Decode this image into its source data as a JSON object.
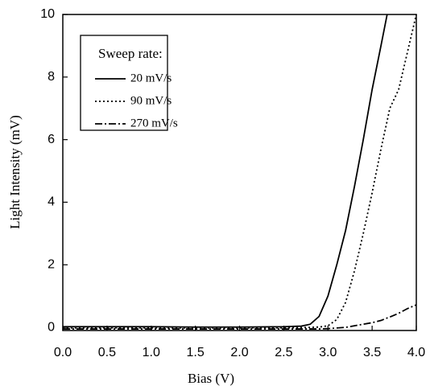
{
  "chart_data": {
    "type": "line",
    "x_label": "Bias (V)",
    "y_label": "Light Intensity (mV)",
    "legend_title": "Sweep rate:",
    "legend": "upper-left",
    "x": [
      0,
      0.5,
      1.0,
      1.5,
      2.0,
      2.5,
      2.7,
      2.8,
      2.9,
      3.0,
      3.1,
      3.2,
      3.3,
      3.4,
      3.5,
      3.6,
      3.67,
      3.7,
      3.8,
      3.9,
      4.0
    ],
    "series": [
      {
        "name": "20 mV/s",
        "color": "#000000",
        "style": "solid",
        "values": [
          0.02,
          0.02,
          0.02,
          0.01,
          0.01,
          0.02,
          0.04,
          0.1,
          0.35,
          1.0,
          2.0,
          3.1,
          4.5,
          6.0,
          7.6,
          9.0,
          10,
          null,
          null,
          null,
          null
        ]
      },
      {
        "name": "90 mV/s",
        "color": "#000000",
        "style": "dotted",
        "values": [
          -0.02,
          -0.02,
          -0.02,
          -0.02,
          -0.02,
          -0.02,
          -0.01,
          0.0,
          0.01,
          0.05,
          0.25,
          0.8,
          1.8,
          3.0,
          4.3,
          5.7,
          6.6,
          7.0,
          7.6,
          8.8,
          10
        ]
      },
      {
        "name": "270 mV/s",
        "color": "#000000",
        "style": "dashdot",
        "values": [
          -0.05,
          -0.05,
          -0.05,
          -0.05,
          -0.05,
          -0.05,
          -0.05,
          -0.05,
          -0.05,
          -0.04,
          -0.02,
          0.0,
          0.05,
          0.1,
          0.15,
          0.22,
          0.3,
          0.33,
          0.45,
          0.6,
          0.72
        ]
      }
    ],
    "xlim": [
      0,
      4.0
    ],
    "xticks": [
      {
        "value": 0,
        "label": "0.0"
      },
      0.5,
      {
        "value": 1,
        "label": "1.0"
      },
      1.5,
      {
        "value": 2,
        "label": "2.0"
      },
      2.5,
      {
        "value": 3,
        "label": "3.0"
      },
      3.5,
      {
        "value": 4,
        "label": "4.0"
      }
    ],
    "ylim": [
      -0.1,
      10
    ],
    "yticks": [
      0,
      2,
      4,
      6,
      8,
      10
    ],
    "grid": false
  }
}
